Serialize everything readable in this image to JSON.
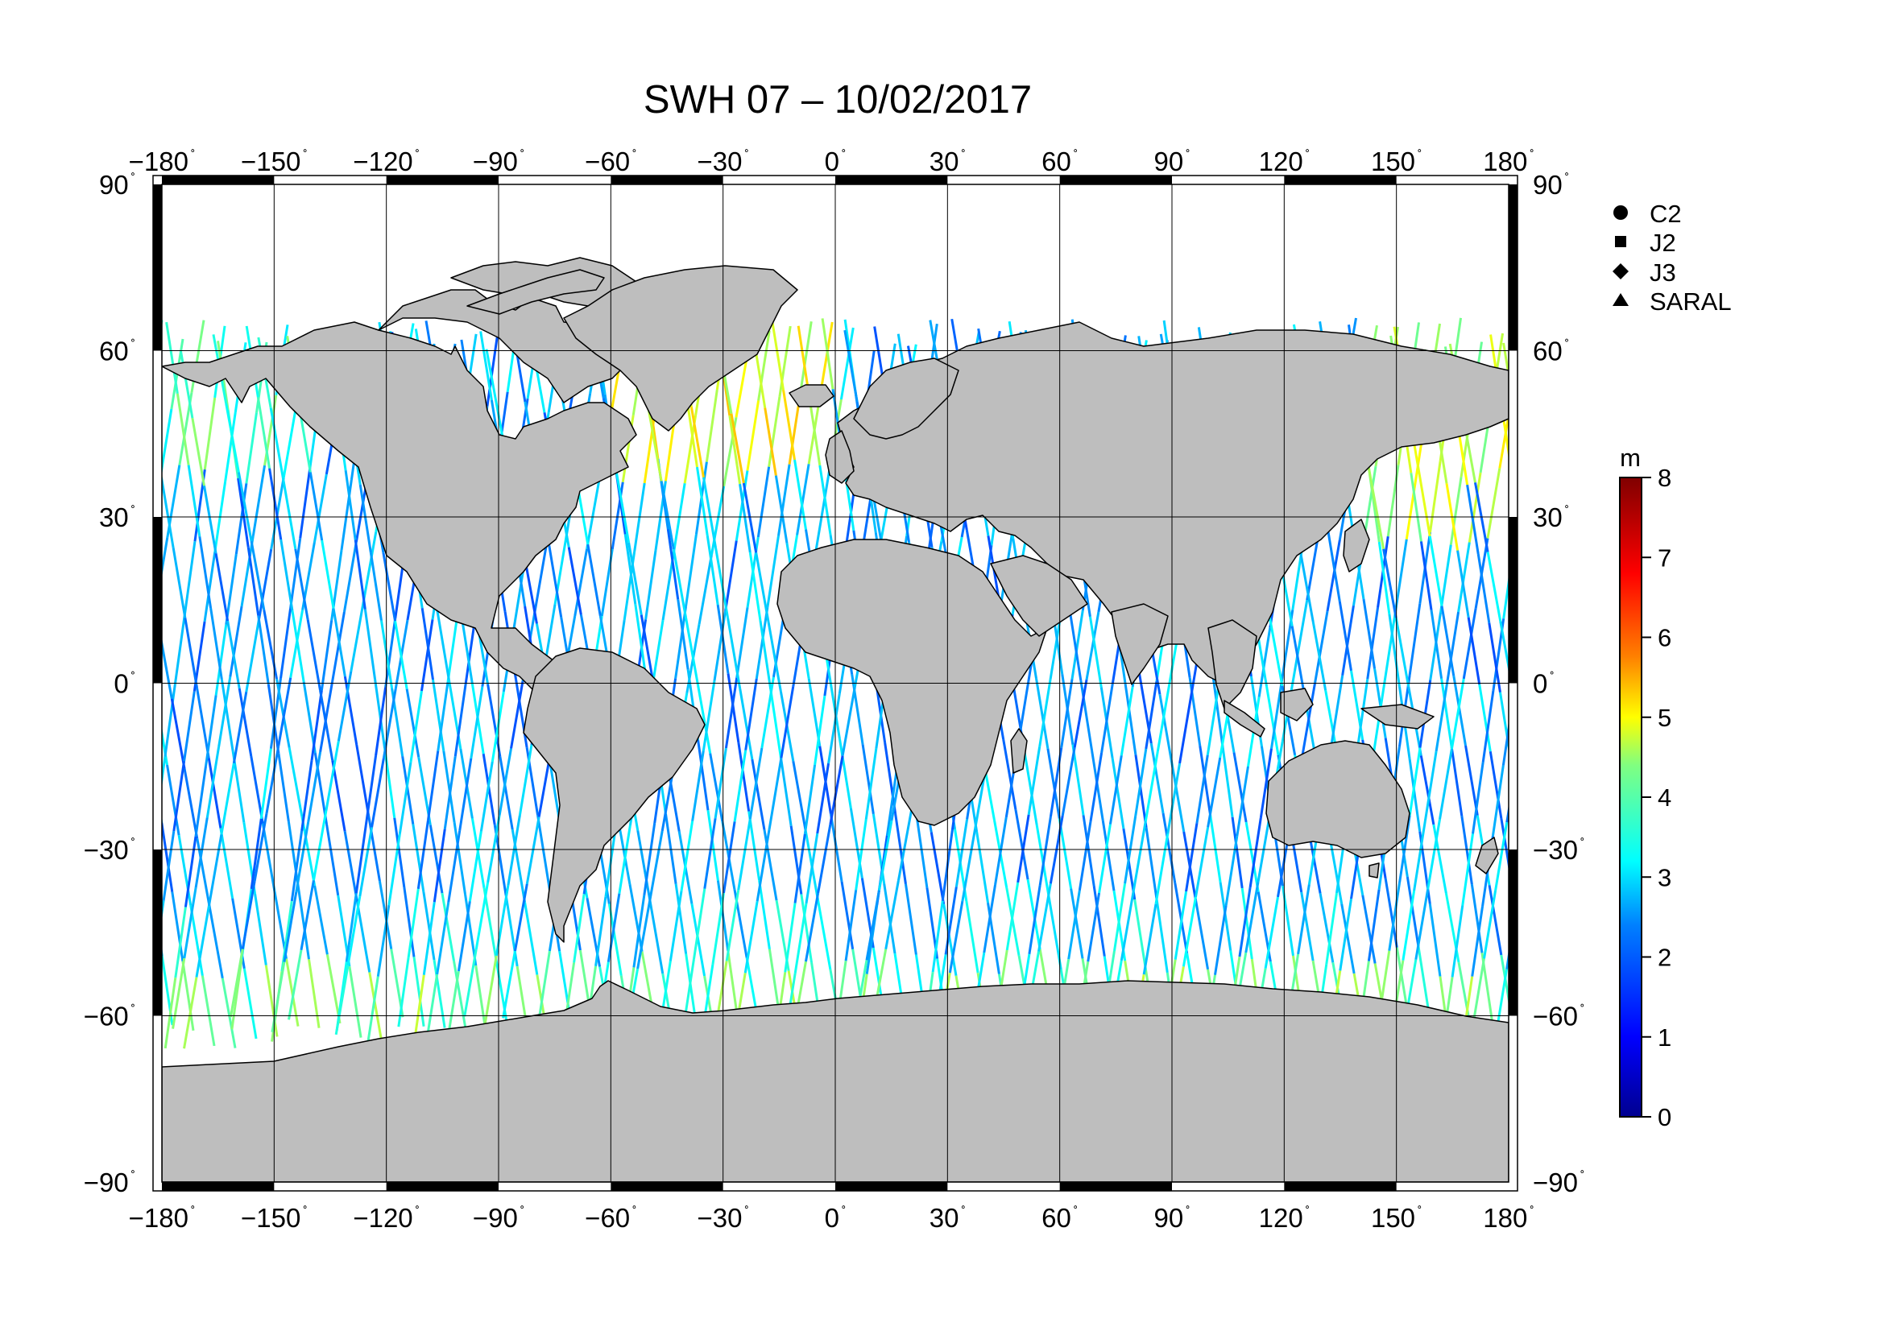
{
  "title": "SWH 07 – 10/02/2017",
  "lon_ticks": [
    "−180",
    "−150",
    "−120",
    "−90",
    "−60",
    "−30",
    "0",
    "30",
    "60",
    "90",
    "120",
    "150",
    "180"
  ],
  "lat_ticks": [
    "90",
    "60",
    "30",
    "0",
    "−30",
    "−60",
    "−90"
  ],
  "degree_symbol": "˚",
  "legend": [
    {
      "label": "C2",
      "marker": "circle"
    },
    {
      "label": "J2",
      "marker": "square"
    },
    {
      "label": "J3",
      "marker": "diamond"
    },
    {
      "label": "SARAL",
      "marker": "triangle"
    }
  ],
  "colorbar": {
    "unit": "m",
    "min": 0,
    "max": 8,
    "tick_labels": [
      "8",
      "7",
      "6",
      "5",
      "4",
      "3",
      "2",
      "1",
      "0"
    ],
    "colors": [
      "#00008f",
      "#0000ff",
      "#0080ff",
      "#00ffff",
      "#80ff80",
      "#ffff00",
      "#ff8000",
      "#ff0000",
      "#800000"
    ]
  },
  "colors": {
    "land": "#bebebe",
    "ocean": "#ffffff",
    "coast": "#000000"
  }
}
